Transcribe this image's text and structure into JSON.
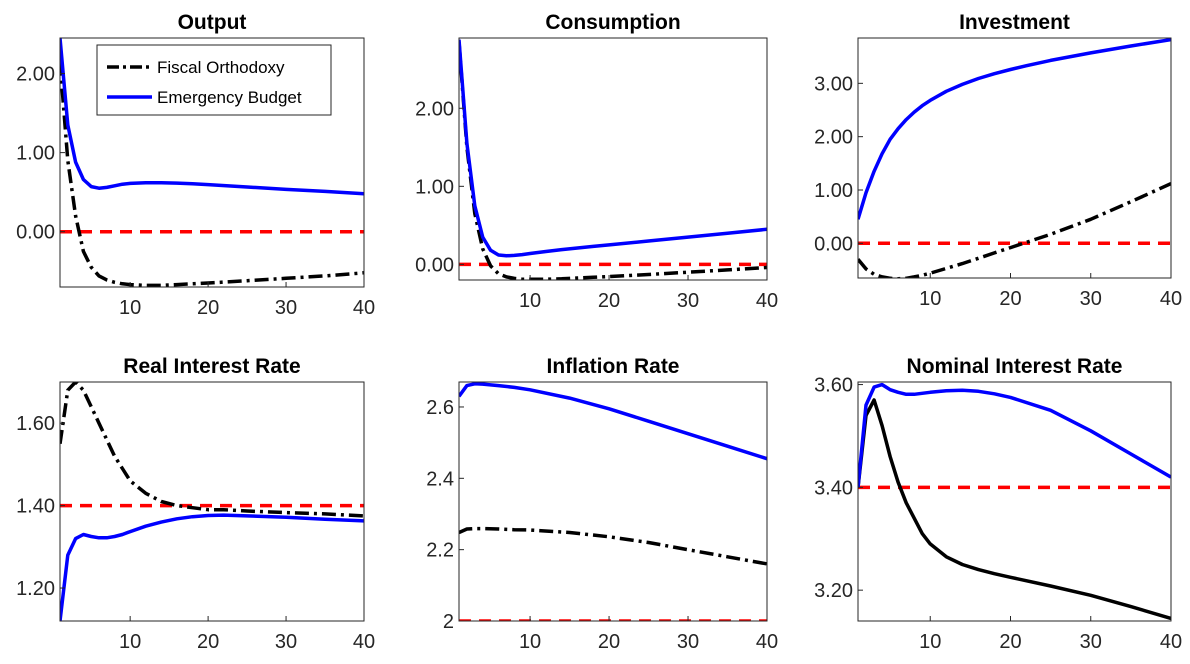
{
  "colors": {
    "fiscal_orthodoxy": "#000000",
    "emergency_budget": "#0000ff",
    "steady_state": "#ff0000"
  },
  "legend": {
    "placement": "top-right of first panel",
    "entries": [
      "Fiscal Orthodoxy",
      "Emergency Budget"
    ]
  },
  "chart_data": [
    {
      "type": "line",
      "title": "Output",
      "xlim": [
        1,
        40
      ],
      "ylim": [
        -0.7,
        2.45
      ],
      "xticks": [
        10,
        20,
        30,
        40
      ],
      "yticks": [
        0,
        1,
        2
      ],
      "yticklabels": [
        "0.00",
        "1.00",
        "2.00"
      ],
      "grid": false,
      "x": [
        1,
        2,
        3,
        4,
        5,
        6,
        7,
        8,
        9,
        10,
        12,
        14,
        16,
        18,
        20,
        25,
        30,
        35,
        40
      ],
      "series": [
        {
          "name": "Fiscal Orthodoxy",
          "style": "dashdot",
          "values": [
            2.15,
            0.9,
            0.2,
            -0.25,
            -0.45,
            -0.56,
            -0.61,
            -0.64,
            -0.66,
            -0.67,
            -0.68,
            -0.68,
            -0.67,
            -0.66,
            -0.65,
            -0.62,
            -0.59,
            -0.56,
            -0.52
          ]
        },
        {
          "name": "Emergency Budget",
          "style": "solid",
          "values": [
            2.45,
            1.35,
            0.88,
            0.66,
            0.57,
            0.55,
            0.56,
            0.58,
            0.6,
            0.61,
            0.62,
            0.62,
            0.615,
            0.605,
            0.595,
            0.565,
            0.535,
            0.51,
            0.48
          ]
        },
        {
          "name": "",
          "style": "dashed-red",
          "values": [
            0,
            0,
            0,
            0,
            0,
            0,
            0,
            0,
            0,
            0,
            0,
            0,
            0,
            0,
            0,
            0,
            0,
            0,
            0
          ]
        }
      ]
    },
    {
      "type": "line",
      "title": "Consumption",
      "xlim": [
        1,
        40
      ],
      "ylim": [
        -0.2,
        2.9
      ],
      "xticks": [
        10,
        20,
        30,
        40
      ],
      "yticks": [
        0,
        1,
        2
      ],
      "yticklabels": [
        "0.00",
        "1.00",
        "2.00"
      ],
      "grid": false,
      "x": [
        1,
        2,
        3,
        4,
        5,
        6,
        7,
        8,
        9,
        10,
        12,
        14,
        16,
        18,
        20,
        25,
        30,
        35,
        40
      ],
      "series": [
        {
          "name": "Fiscal Orthodoxy",
          "style": "dashdot",
          "values": [
            2.85,
            1.5,
            0.65,
            0.2,
            -0.02,
            -0.12,
            -0.16,
            -0.18,
            -0.19,
            -0.19,
            -0.19,
            -0.185,
            -0.175,
            -0.165,
            -0.155,
            -0.13,
            -0.1,
            -0.07,
            -0.04
          ]
        },
        {
          "name": "Emergency Budget",
          "style": "solid",
          "values": [
            2.88,
            1.55,
            0.75,
            0.35,
            0.18,
            0.12,
            0.11,
            0.115,
            0.125,
            0.14,
            0.165,
            0.19,
            0.21,
            0.23,
            0.25,
            0.3,
            0.35,
            0.4,
            0.45
          ]
        },
        {
          "name": "",
          "style": "dashed-red",
          "values": [
            0,
            0,
            0,
            0,
            0,
            0,
            0,
            0,
            0,
            0,
            0,
            0,
            0,
            0,
            0,
            0,
            0,
            0,
            0
          ]
        }
      ]
    },
    {
      "type": "line",
      "title": "Investment",
      "xlim": [
        1,
        40
      ],
      "ylim": [
        -0.65,
        3.85
      ],
      "xticks": [
        10,
        20,
        30,
        40
      ],
      "yticks": [
        0,
        1,
        2,
        3
      ],
      "yticklabels": [
        "0.00",
        "1.00",
        "2.00",
        "3.00"
      ],
      "grid": false,
      "x": [
        1,
        2,
        3,
        4,
        5,
        6,
        7,
        8,
        9,
        10,
        12,
        14,
        16,
        18,
        20,
        22,
        25,
        30,
        35,
        40
      ],
      "series": [
        {
          "name": "Fiscal Orthodoxy",
          "style": "dashdot",
          "values": [
            -0.3,
            -0.48,
            -0.58,
            -0.63,
            -0.655,
            -0.665,
            -0.655,
            -0.63,
            -0.6,
            -0.56,
            -0.47,
            -0.38,
            -0.28,
            -0.18,
            -0.08,
            0.02,
            0.17,
            0.45,
            0.78,
            1.12
          ]
        },
        {
          "name": "Emergency Budget",
          "style": "solid",
          "values": [
            0.45,
            0.95,
            1.35,
            1.68,
            1.95,
            2.15,
            2.32,
            2.46,
            2.58,
            2.68,
            2.85,
            2.98,
            3.09,
            3.18,
            3.26,
            3.33,
            3.43,
            3.57,
            3.7,
            3.82
          ]
        },
        {
          "name": "",
          "style": "dashed-red",
          "values": [
            0,
            0,
            0,
            0,
            0,
            0,
            0,
            0,
            0,
            0,
            0,
            0,
            0,
            0,
            0,
            0,
            0,
            0,
            0,
            0
          ]
        }
      ]
    },
    {
      "type": "line",
      "title": "Real Interest Rate",
      "xlim": [
        1,
        40
      ],
      "ylim": [
        1.12,
        1.7
      ],
      "xticks": [
        10,
        20,
        30,
        40
      ],
      "yticks": [
        1.2,
        1.4,
        1.6
      ],
      "yticklabels": [
        "1.20",
        "1.40",
        "1.60"
      ],
      "grid": false,
      "x": [
        1,
        2,
        3,
        4,
        5,
        6,
        7,
        8,
        9,
        10,
        12,
        14,
        16,
        18,
        20,
        22,
        25,
        30,
        35,
        40
      ],
      "series": [
        {
          "name": "Fiscal Orthodoxy",
          "style": "dashdot",
          "values": [
            1.55,
            1.68,
            1.7,
            1.68,
            1.64,
            1.6,
            1.56,
            1.52,
            1.49,
            1.46,
            1.43,
            1.41,
            1.4,
            1.395,
            1.39,
            1.39,
            1.387,
            1.383,
            1.38,
            1.375
          ]
        },
        {
          "name": "Emergency Budget",
          "style": "solid",
          "values": [
            1.12,
            1.28,
            1.32,
            1.33,
            1.325,
            1.322,
            1.322,
            1.325,
            1.33,
            1.337,
            1.35,
            1.36,
            1.368,
            1.373,
            1.376,
            1.377,
            1.375,
            1.372,
            1.367,
            1.363
          ]
        },
        {
          "name": "",
          "style": "dashed-red",
          "values": [
            1.4,
            1.4,
            1.4,
            1.4,
            1.4,
            1.4,
            1.4,
            1.4,
            1.4,
            1.4,
            1.4,
            1.4,
            1.4,
            1.4,
            1.4,
            1.4,
            1.4,
            1.4,
            1.4,
            1.4
          ]
        }
      ]
    },
    {
      "type": "line",
      "title": "Inflation Rate",
      "xlim": [
        1,
        40
      ],
      "ylim": [
        2,
        2.67
      ],
      "xticks": [
        10,
        20,
        30,
        40
      ],
      "yticks": [
        2,
        2.2,
        2.4,
        2.6
      ],
      "yticklabels": [
        "2",
        "2.2",
        "2.4",
        "2.6"
      ],
      "grid": false,
      "x": [
        1,
        2,
        3,
        4,
        6,
        8,
        10,
        15,
        20,
        25,
        30,
        35,
        40
      ],
      "series": [
        {
          "name": "Fiscal Orthodoxy",
          "style": "dashdot",
          "values": [
            2.248,
            2.258,
            2.259,
            2.259,
            2.258,
            2.256,
            2.255,
            2.248,
            2.236,
            2.22,
            2.2,
            2.18,
            2.16
          ]
        },
        {
          "name": "Emergency Budget",
          "style": "solid",
          "values": [
            2.63,
            2.66,
            2.665,
            2.664,
            2.66,
            2.655,
            2.648,
            2.625,
            2.595,
            2.56,
            2.525,
            2.49,
            2.455
          ]
        },
        {
          "name": "",
          "style": "dashed-red",
          "values": [
            2,
            2,
            2,
            2,
            2,
            2,
            2,
            2,
            2,
            2,
            2,
            2,
            2
          ]
        }
      ]
    },
    {
      "type": "line",
      "title": "Nominal Interest Rate",
      "xlim": [
        1,
        40
      ],
      "ylim": [
        3.14,
        3.605
      ],
      "xticks": [
        10,
        20,
        30,
        40
      ],
      "yticks": [
        3.2,
        3.4,
        3.6
      ],
      "yticklabels": [
        "3.20",
        "3.40",
        "3.60"
      ],
      "grid": false,
      "x": [
        1,
        2,
        3,
        4,
        5,
        6,
        7,
        8,
        9,
        10,
        12,
        14,
        16,
        18,
        20,
        25,
        30,
        35,
        40
      ],
      "series": [
        {
          "name": "Fiscal Orthodoxy",
          "style": "solid",
          "values": [
            3.4,
            3.54,
            3.57,
            3.52,
            3.46,
            3.41,
            3.37,
            3.34,
            3.31,
            3.29,
            3.265,
            3.25,
            3.24,
            3.232,
            3.225,
            3.208,
            3.19,
            3.168,
            3.145
          ]
        },
        {
          "name": "Emergency Budget",
          "style": "solid",
          "values": [
            3.4,
            3.56,
            3.595,
            3.6,
            3.59,
            3.585,
            3.581,
            3.581,
            3.583,
            3.585,
            3.588,
            3.589,
            3.587,
            3.582,
            3.575,
            3.55,
            3.51,
            3.465,
            3.42
          ]
        },
        {
          "name": "",
          "style": "dashed-red",
          "values": [
            3.4,
            3.4,
            3.4,
            3.4,
            3.4,
            3.4,
            3.4,
            3.4,
            3.4,
            3.4,
            3.4,
            3.4,
            3.4,
            3.4,
            3.4,
            3.4,
            3.4,
            3.4,
            3.4
          ]
        }
      ]
    }
  ]
}
